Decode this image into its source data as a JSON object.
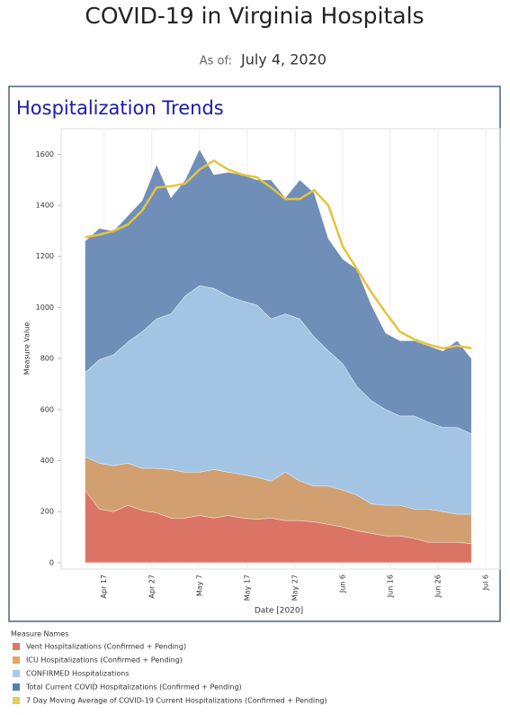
{
  "header": {
    "title": "COVID-19 in Virginia Hospitals",
    "as_of_label": "As of:",
    "as_of_date": "July 4, 2020"
  },
  "chart_data": {
    "type": "area",
    "title": "Hospitalization Trends",
    "x_label": "Date [2020]",
    "y_label": "Measure Value",
    "legend_title": "Measure Names",
    "x": [
      "2020-04-13",
      "2020-04-16",
      "2020-04-19",
      "2020-04-22",
      "2020-04-25",
      "2020-04-28",
      "2020-05-01",
      "2020-05-04",
      "2020-05-07",
      "2020-05-10",
      "2020-05-13",
      "2020-05-16",
      "2020-05-19",
      "2020-05-22",
      "2020-05-25",
      "2020-05-28",
      "2020-05-31",
      "2020-06-03",
      "2020-06-06",
      "2020-06-09",
      "2020-06-12",
      "2020-06-15",
      "2020-06-18",
      "2020-06-21",
      "2020-06-24",
      "2020-06-27",
      "2020-06-30",
      "2020-07-03"
    ],
    "xlim": [
      "2020-04-08",
      "2020-07-09"
    ],
    "xticks": [
      {
        "value": "2020-04-17",
        "label": "Apr 17"
      },
      {
        "value": "2020-04-27",
        "label": "Apr 27"
      },
      {
        "value": "2020-05-07",
        "label": "May 7"
      },
      {
        "value": "2020-05-17",
        "label": "May 17"
      },
      {
        "value": "2020-05-27",
        "label": "May 27"
      },
      {
        "value": "2020-06-06",
        "label": "Jun 6"
      },
      {
        "value": "2020-06-16",
        "label": "Jun 16"
      },
      {
        "value": "2020-06-26",
        "label": "Jun 26"
      },
      {
        "value": "2020-07-06",
        "label": "Jul 6"
      }
    ],
    "ylim": [
      -25,
      1700
    ],
    "yticks": [
      0,
      200,
      400,
      600,
      800,
      1000,
      1200,
      1400,
      1600
    ],
    "xgrid": true,
    "series": [
      {
        "name": "Total Current COVID Hospitalizations (Confirmed + Pending)",
        "color": "#6f8fb8",
        "legend_color": "#5b7fa8",
        "kind": "area",
        "values": [
          1260,
          1310,
          1300,
          1360,
          1420,
          1560,
          1430,
          1500,
          1620,
          1520,
          1530,
          1520,
          1500,
          1500,
          1430,
          1500,
          1450,
          1270,
          1190,
          1150,
          1010,
          900,
          870,
          870,
          850,
          830,
          870,
          800
        ]
      },
      {
        "name": "CONFIRMED Hospitalizations",
        "color": "#a3c4e2",
        "legend_color": "#a8cbe8",
        "kind": "area",
        "values": [
          745,
          795,
          815,
          865,
          905,
          955,
          975,
          1045,
          1085,
          1075,
          1045,
          1025,
          1010,
          955,
          975,
          955,
          885,
          830,
          780,
          690,
          635,
          600,
          575,
          575,
          550,
          530,
          530,
          505
        ]
      },
      {
        "name": "ICU Hospitalizations (Confirmed + Pending)",
        "color": "#d2a070",
        "legend_color": "#e8a461",
        "kind": "area",
        "values": [
          415,
          390,
          380,
          390,
          370,
          370,
          365,
          355,
          355,
          365,
          355,
          345,
          335,
          320,
          355,
          320,
          300,
          300,
          285,
          265,
          230,
          225,
          225,
          210,
          210,
          200,
          190,
          190
        ]
      },
      {
        "name": "Vent Hospitalizations (Confirmed + Pending)",
        "color": "#dc7466",
        "legend_color": "#e07568",
        "kind": "area",
        "values": [
          285,
          210,
          200,
          225,
          205,
          195,
          175,
          175,
          185,
          175,
          185,
          175,
          170,
          175,
          165,
          165,
          160,
          150,
          140,
          125,
          115,
          105,
          105,
          95,
          80,
          80,
          80,
          75
        ]
      },
      {
        "name": "7 Day Moving Average of COVID-19 Current Hospitalizations (Confirmed + Pending)",
        "color": "#e6c33c",
        "legend_color": "#e8ca55",
        "kind": "line",
        "values": [
          1275,
          1285,
          1300,
          1325,
          1380,
          1470,
          1475,
          1485,
          1540,
          1575,
          1540,
          1520,
          1510,
          1470,
          1425,
          1425,
          1460,
          1400,
          1240,
          1150,
          1060,
          980,
          905,
          875,
          855,
          840,
          850,
          840
        ]
      }
    ],
    "legend_order": [
      3,
      2,
      1,
      0,
      4
    ]
  }
}
